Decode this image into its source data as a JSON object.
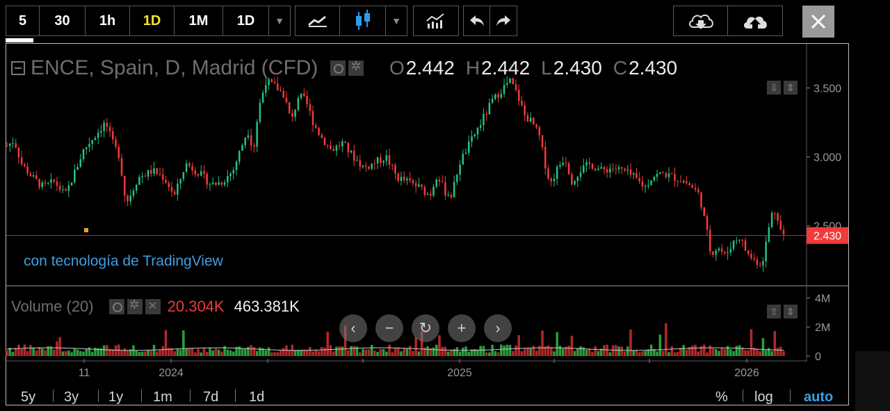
{
  "toolbar": {
    "intervals": [
      "5",
      "30",
      "1h",
      "1D",
      "1M",
      "1D"
    ],
    "active_interval": "1D",
    "icons": [
      "line-chart-icon",
      "candlestick-icon",
      "indicators-icon",
      "undo-icon",
      "redo-icon",
      "cloud-download-icon",
      "cloud-upload-icon",
      "close-icon"
    ],
    "accent": "#f5e623"
  },
  "legend": {
    "symbol": "ENCE, Spain, D, Madrid (CFD)",
    "ohlc": [
      {
        "k": "O",
        "v": "2.442"
      },
      {
        "k": "H",
        "v": "2.442"
      },
      {
        "k": "L",
        "v": "2.430"
      },
      {
        "k": "C",
        "v": "2.430"
      }
    ]
  },
  "watermark": "con tecnología de TradingView",
  "volume": {
    "label": "Volume (20)",
    "value_ma": "20.304K",
    "value_vol": "463.381K"
  },
  "bottom": {
    "ranges": [
      "5y",
      "3y",
      "1y",
      "1m",
      "7d",
      "1d"
    ],
    "percent": "%",
    "log": "log",
    "auto": "auto"
  },
  "colors": {
    "up": "#26c281",
    "down": "#f23a3a",
    "price_line": "#f23a3a",
    "watermark": "#3d9fe3"
  },
  "chart_data": {
    "type": "candlestick",
    "symbol": "ENCE",
    "last_price": 2.43,
    "last_price_label": "2.430",
    "y_ticks": [
      3.5,
      3.0,
      2.5
    ],
    "y_tick_labels": [
      "3.500",
      "3.000",
      "2.500"
    ],
    "ylim": [
      2.07,
      3.81
    ],
    "x_tick_labels": [
      "11",
      "2024",
      "2025",
      "2026"
    ],
    "volume_y_tick_labels": [
      "4M",
      "2M",
      "0"
    ],
    "volume_ylim": [
      0,
      4500000
    ],
    "series": [
      {
        "name": "price_path",
        "points": [
          [
            0,
            3.08
          ],
          [
            0.01,
            3.12
          ],
          [
            0.02,
            2.95
          ],
          [
            0.035,
            2.85
          ],
          [
            0.05,
            2.78
          ],
          [
            0.065,
            2.82
          ],
          [
            0.08,
            2.72
          ],
          [
            0.09,
            2.85
          ],
          [
            0.105,
            3.05
          ],
          [
            0.12,
            3.15
          ],
          [
            0.135,
            3.25
          ],
          [
            0.145,
            3.1
          ],
          [
            0.155,
            3.0
          ],
          [
            0.16,
            2.75
          ],
          [
            0.165,
            2.68
          ],
          [
            0.18,
            2.85
          ],
          [
            0.2,
            2.9
          ],
          [
            0.215,
            2.85
          ],
          [
            0.23,
            2.72
          ],
          [
            0.245,
            2.95
          ],
          [
            0.26,
            2.9
          ],
          [
            0.28,
            2.8
          ],
          [
            0.295,
            2.82
          ],
          [
            0.31,
            2.9
          ],
          [
            0.32,
            3.05
          ],
          [
            0.33,
            3.2
          ],
          [
            0.338,
            3.05
          ],
          [
            0.345,
            3.35
          ],
          [
            0.355,
            3.55
          ],
          [
            0.37,
            3.5
          ],
          [
            0.38,
            3.45
          ],
          [
            0.39,
            3.25
          ],
          [
            0.4,
            3.45
          ],
          [
            0.41,
            3.4
          ],
          [
            0.42,
            3.25
          ],
          [
            0.43,
            3.15
          ],
          [
            0.445,
            3.05
          ],
          [
            0.46,
            3.1
          ],
          [
            0.475,
            3.0
          ],
          [
            0.49,
            2.92
          ],
          [
            0.505,
            2.96
          ],
          [
            0.52,
            3.0
          ],
          [
            0.535,
            2.85
          ],
          [
            0.55,
            2.82
          ],
          [
            0.565,
            2.78
          ],
          [
            0.58,
            2.72
          ],
          [
            0.59,
            2.88
          ],
          [
            0.6,
            2.75
          ],
          [
            0.61,
            2.72
          ],
          [
            0.62,
            2.95
          ],
          [
            0.635,
            3.1
          ],
          [
            0.65,
            3.25
          ],
          [
            0.665,
            3.4
          ],
          [
            0.68,
            3.5
          ],
          [
            0.69,
            3.55
          ],
          [
            0.7,
            3.45
          ],
          [
            0.71,
            3.3
          ],
          [
            0.72,
            3.25
          ],
          [
            0.73,
            3.15
          ],
          [
            0.738,
            2.95
          ],
          [
            0.745,
            2.8
          ],
          [
            0.755,
            2.92
          ],
          [
            0.765,
            3.0
          ],
          [
            0.775,
            2.82
          ],
          [
            0.785,
            2.9
          ],
          [
            0.8,
            2.95
          ],
          [
            0.815,
            2.9
          ],
          [
            0.83,
            2.92
          ],
          [
            0.845,
            2.9
          ],
          [
            0.86,
            2.85
          ],
          [
            0.875,
            2.78
          ],
          [
            0.885,
            2.86
          ],
          [
            0.9,
            2.88
          ],
          [
            0.915,
            2.85
          ],
          [
            0.93,
            2.82
          ],
          [
            0.94,
            2.78
          ],
          [
            0.95,
            2.72
          ],
          [
            0.955,
            2.58
          ],
          [
            0.96,
            2.45
          ],
          [
            0.965,
            2.3
          ],
          [
            0.975,
            2.35
          ],
          [
            0.985,
            2.28
          ],
          [
            0.995,
            2.38
          ],
          [
            1.005,
            2.42
          ],
          [
            1.015,
            2.3
          ],
          [
            1.025,
            2.25
          ],
          [
            1.035,
            2.22
          ],
          [
            1.04,
            2.35
          ],
          [
            1.048,
            2.58
          ],
          [
            1.055,
            2.62
          ],
          [
            1.06,
            2.48
          ],
          [
            1.065,
            2.43
          ]
        ]
      }
    ]
  }
}
